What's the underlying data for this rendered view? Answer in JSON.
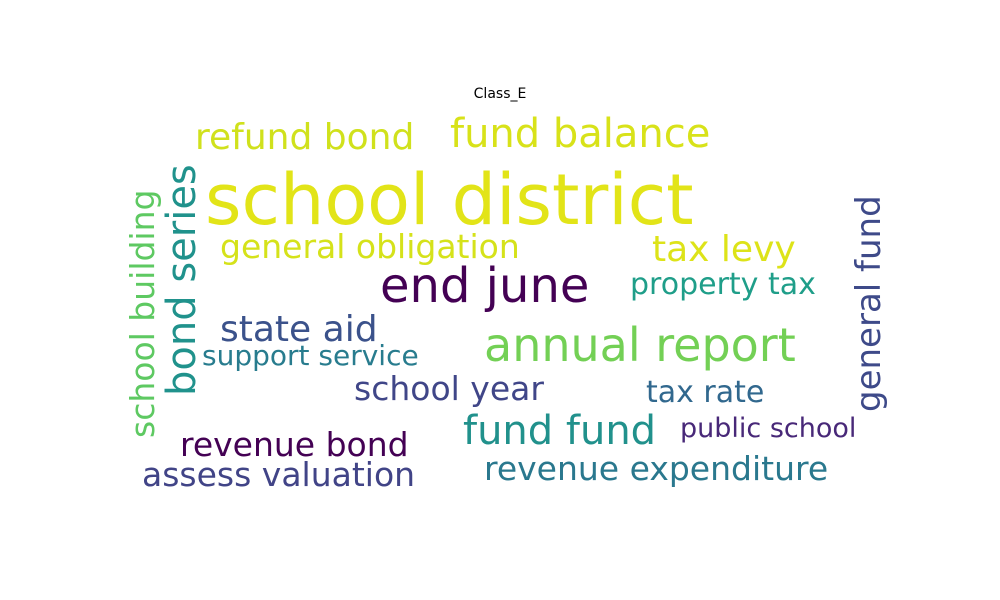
{
  "chart_data": {
    "type": "wordcloud",
    "title": "Class_E",
    "words": [
      {
        "text": "school district",
        "weight": 1.0,
        "color": "#e2e418"
      },
      {
        "text": "fund balance",
        "weight": 0.55,
        "color": "#d8e219"
      },
      {
        "text": "refund bond",
        "weight": 0.5,
        "color": "#d0e11c"
      },
      {
        "text": "annual report",
        "weight": 0.62,
        "color": "#73d055"
      },
      {
        "text": "end june",
        "weight": 0.68,
        "color": "#440154"
      },
      {
        "text": "general obligation",
        "weight": 0.45,
        "color": "#d5e21a"
      },
      {
        "text": "tax levy",
        "weight": 0.5,
        "color": "#dde318"
      },
      {
        "text": "bond series",
        "weight": 0.58,
        "color": "#20928c"
      },
      {
        "text": "school building",
        "weight": 0.45,
        "color": "#5ec962"
      },
      {
        "text": "general fund",
        "weight": 0.5,
        "color": "#3e4a89"
      },
      {
        "text": "property tax",
        "weight": 0.4,
        "color": "#1f9e89"
      },
      {
        "text": "state aid",
        "weight": 0.48,
        "color": "#3b528b"
      },
      {
        "text": "support service",
        "weight": 0.38,
        "color": "#287c8e"
      },
      {
        "text": "school year",
        "weight": 0.45,
        "color": "#404688"
      },
      {
        "text": "tax rate",
        "weight": 0.4,
        "color": "#31688e"
      },
      {
        "text": "fund fund",
        "weight": 0.52,
        "color": "#21918c"
      },
      {
        "text": "public school",
        "weight": 0.36,
        "color": "#482878"
      },
      {
        "text": "revenue bond",
        "weight": 0.45,
        "color": "#440154"
      },
      {
        "text": "assess valuation",
        "weight": 0.45,
        "color": "#414487"
      },
      {
        "text": "revenue expenditure",
        "weight": 0.45,
        "color": "#2a788e"
      }
    ]
  }
}
